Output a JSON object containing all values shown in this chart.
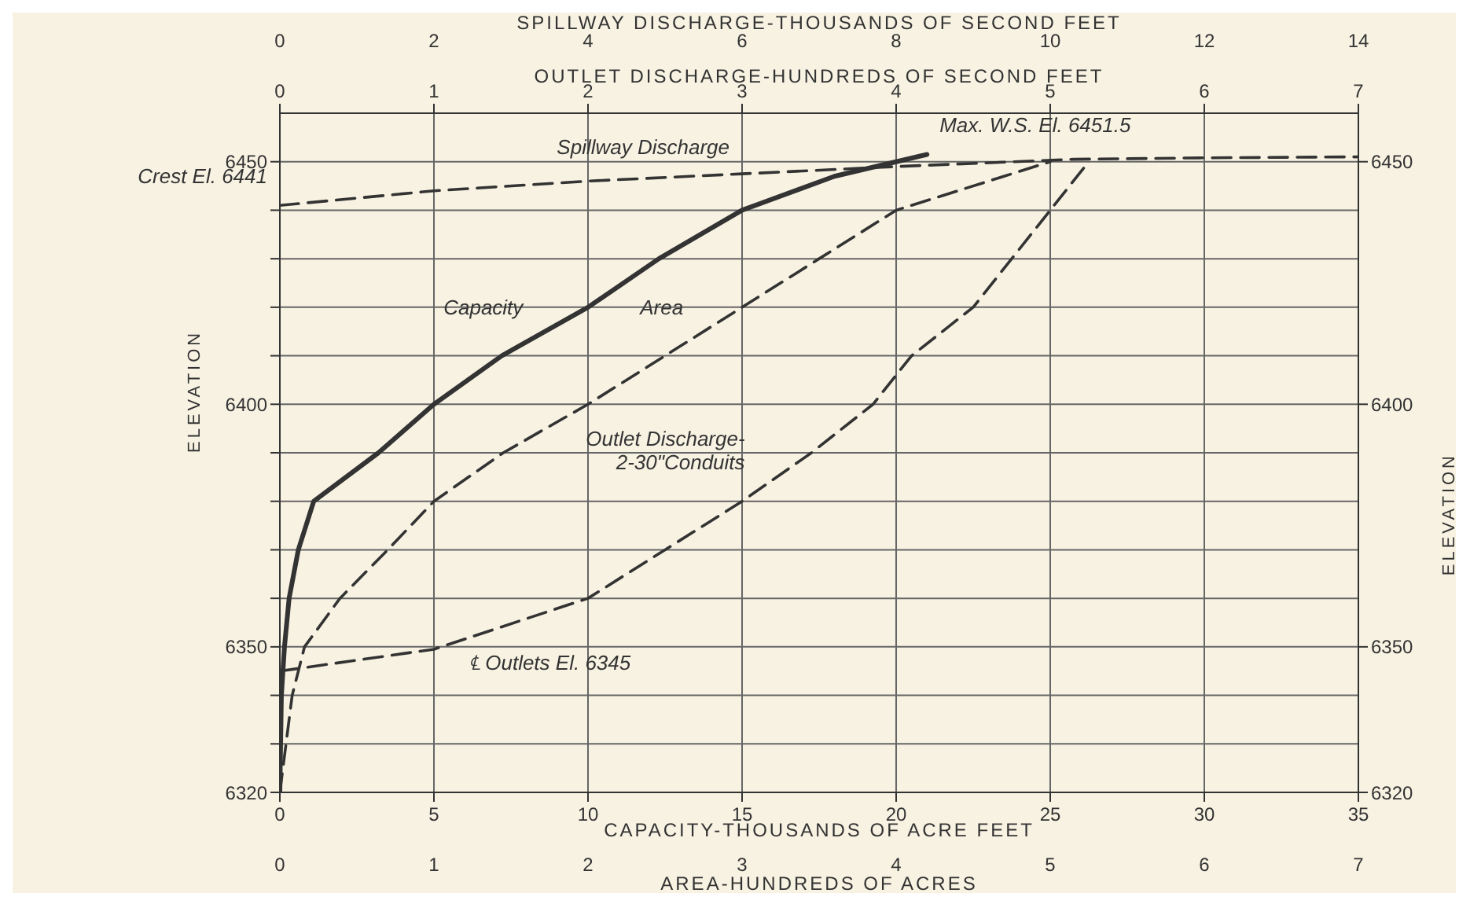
{
  "chart_data": [
    {
      "type": "line",
      "xlabel": "CAPACITY-THOUSANDS OF ACRE FEET",
      "xlim": [
        0,
        35
      ],
      "xticks": [
        0,
        5,
        10,
        15,
        20,
        25,
        30,
        35
      ],
      "x2label": "SPILLWAY DISCHARGE-THOUSANDS OF SECOND FEET",
      "x2lim": [
        0,
        14
      ],
      "x2ticks": [
        0,
        2,
        4,
        6,
        8,
        10,
        12,
        14
      ],
      "ylabel": "ELEVATION",
      "ylim": [
        6320,
        6460
      ],
      "yticks": [
        6320,
        {
          "value": 6330,
          "label": null
        },
        {
          "value": 6340,
          "label": null
        },
        6350,
        {
          "value": 6360,
          "label": null
        },
        {
          "value": 6370,
          "label": null
        },
        {
          "value": 6380,
          "label": null
        },
        {
          "value": 6390,
          "label": null
        },
        6400,
        {
          "value": 6410,
          "label": null
        },
        {
          "value": 6420,
          "label": null
        },
        {
          "value": 6430,
          "label": null
        },
        {
          "value": 6440,
          "label": null
        },
        6450
      ],
      "y2label": "ELEVATION",
      "y2lim": [
        6320,
        6460
      ],
      "y2ticks": [
        6320,
        6350,
        6400,
        6450
      ],
      "grid": true,
      "marker": "none",
      "series": [
        {
          "color": "#333333",
          "line_style": "solid",
          "x": [
            0,
            0.05,
            0.15,
            0.3,
            0.6,
            1.1,
            3.2,
            5,
            7.2,
            10,
            12.3,
            15,
            18,
            21
          ],
          "values": [
            6320,
            6340,
            6350,
            6360,
            6370,
            6380,
            6390,
            6400,
            6410,
            6420,
            6430,
            6440,
            6447,
            6451.5
          ]
        },
        {
          "color": "#333333",
          "line_style": "dashed",
          "axis": "x2",
          "x": [
            0,
            2,
            4,
            6,
            8,
            10.3,
            12,
            14
          ],
          "values": [
            6441,
            6444,
            6446,
            6447.5,
            6449,
            6450.5,
            6450.8,
            6451
          ]
        }
      ],
      "annotations": [
        {
          "text": "Capacity",
          "x": 8.3,
          "y": 6414
        },
        {
          "text": "Spillway Discharge",
          "x": 15,
          "y": 6447
        },
        {
          "text": "Max. W.S. El. 6451.5",
          "x": 21,
          "y": 6451.5
        },
        {
          "text": "Crest El. 6441",
          "x": 0,
          "y": 6441
        }
      ]
    },
    {
      "type": "line",
      "xlabel": "AREA-HUNDREDS OF ACRES",
      "xlim": [
        0,
        7
      ],
      "xticks": [
        0,
        1,
        2,
        3,
        4,
        5,
        6,
        7
      ],
      "x2label": "OUTLET DISCHARGE-HUNDREDS OF SECOND FEET",
      "x2lim": [
        0,
        7
      ],
      "x2ticks": [
        0,
        1,
        2,
        3,
        4,
        5,
        6,
        7
      ],
      "ylim": [
        6320,
        6460
      ],
      "tick_labels": "x",
      "marker": "none",
      "series": [
        {
          "color": "#333333",
          "line_style": "dashed",
          "x": [
            0,
            0.08,
            0.16,
            0.39,
            0.7,
            1,
            1.45,
            2,
            2.5,
            3,
            3.5,
            4,
            5
          ],
          "values": [
            6320,
            6340,
            6350,
            6360,
            6370,
            6380,
            6390,
            6400,
            6410,
            6420,
            6430,
            6440,
            6450
          ]
        },
        {
          "color": "#333333",
          "line_style": "dashed",
          "axis": "x2",
          "x": [
            0,
            1,
            2,
            2.5,
            3,
            3.45,
            3.85,
            4.1,
            4.5,
            4.75,
            5,
            5.25
          ],
          "values": [
            6345,
            6349.5,
            6360,
            6370,
            6380,
            6390,
            6400,
            6410,
            6420,
            6430,
            6440,
            6450
          ]
        }
      ],
      "annotations": [
        {
          "text": "Area",
          "x": 2.7,
          "y": 6414
        },
        {
          "text": "Outlet Discharge-\n2-30\"Conduits",
          "x": 3.1,
          "y": 6382
        },
        "℄ Outlets El. 6345"
      ]
    }
  ]
}
